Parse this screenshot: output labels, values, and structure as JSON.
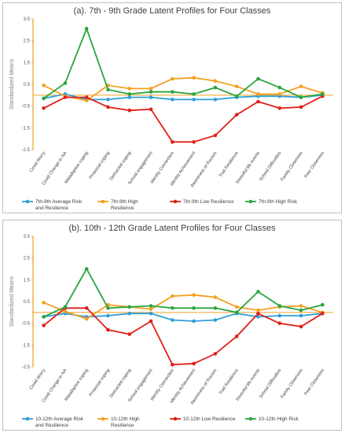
{
  "chart_data": [
    {
      "type": "line",
      "title": "(a). 7th - 9th Grade Latent Profiles for Four Classes",
      "ylabel": "Standardized Means",
      "ylim": [
        -2.5,
        3.5
      ],
      "yticks": [
        "3.5",
        "2.5",
        "1.5",
        "0.5",
        "-0.5",
        "-1.5",
        "-2.5"
      ],
      "grid": false,
      "legend_position": "bottom",
      "categories": [
        "Covid Worry",
        "Covid Change in NA",
        "Maladaptive coping",
        "Prosocial coping",
        "Distracted coping",
        "School engagement",
        "Identity Connection",
        "Identity Achievement",
        "Awareness of Racism",
        "Trait Resilience",
        "Stressful life events",
        "School Difficulties",
        "Family Closeness",
        "Peer Closeness"
      ],
      "series": [
        {
          "name": "7th-9th Average Risk and Resilience",
          "color": "#2e9fd8",
          "values": [
            -0.15,
            0.05,
            -0.2,
            -0.2,
            -0.1,
            -0.1,
            -0.2,
            -0.2,
            -0.2,
            -0.1,
            -0.05,
            -0.05,
            -0.1,
            0.0
          ]
        },
        {
          "name": "7th-9th High Resilience",
          "color": "#f4a021",
          "values": [
            0.45,
            -0.05,
            -0.25,
            0.45,
            0.3,
            0.3,
            0.75,
            0.8,
            0.65,
            0.4,
            0.05,
            0.05,
            0.4,
            0.1
          ]
        },
        {
          "name": "7th-9th Low Resilience",
          "color": "#e0201b",
          "values": [
            -0.6,
            -0.1,
            -0.1,
            -0.55,
            -0.7,
            -0.65,
            -2.15,
            -2.15,
            -1.85,
            -0.9,
            -0.3,
            -0.6,
            -0.55,
            -0.05
          ]
        },
        {
          "name": "7th-9th High Risk",
          "color": "#2aa53e",
          "values": [
            -0.15,
            0.55,
            3.05,
            0.25,
            0.05,
            0.15,
            0.15,
            0.05,
            0.35,
            -0.05,
            0.75,
            0.35,
            -0.1,
            0.05
          ]
        }
      ]
    },
    {
      "type": "line",
      "title": "(b). 10th - 12th Grade Latent Profiles for Four Classes",
      "ylabel": "Standardized Means",
      "ylim": [
        -2.5,
        3.5
      ],
      "yticks": [
        "3.5",
        "2.5",
        "1.5",
        "0.5",
        "-0.5",
        "-1.5",
        "-2.5"
      ],
      "grid": false,
      "legend_position": "bottom",
      "categories": [
        "Covid Worry",
        "Covid Change in NA",
        "Maladaptive coping",
        "Prosocial coping",
        "Distracted coping",
        "School engagement",
        "Identity Connection",
        "Identity Achievement",
        "Awareness of Racism",
        "Trait Resilience",
        "Stressful life events",
        "School Difficulties",
        "Family Closeness",
        "Peer Closeness"
      ],
      "series": [
        {
          "name": "10-12th  Average Risk and Resilience",
          "color": "#2e9fd8",
          "values": [
            -0.2,
            -0.05,
            -0.2,
            -0.15,
            -0.05,
            -0.05,
            -0.35,
            -0.4,
            -0.35,
            -0.05,
            -0.2,
            -0.15,
            -0.15,
            -0.05
          ]
        },
        {
          "name": "10-12th  High Resilience",
          "color": "#f4a021",
          "values": [
            0.45,
            0.05,
            -0.3,
            0.35,
            0.25,
            0.15,
            0.75,
            0.8,
            0.7,
            0.25,
            0.1,
            0.25,
            0.3,
            0.0
          ]
        },
        {
          "name": "10-12th  Low Resilience",
          "color": "#e0201b",
          "values": [
            -0.6,
            0.2,
            0.2,
            -0.8,
            -1.0,
            -0.4,
            -2.4,
            -2.35,
            -1.9,
            -1.1,
            -0.05,
            -0.5,
            -0.65,
            -0.05
          ]
        },
        {
          "name": "10-12th  High Risk",
          "color": "#2aa53e",
          "values": [
            -0.2,
            0.25,
            2.0,
            0.2,
            0.25,
            0.3,
            0.2,
            0.2,
            0.2,
            0.0,
            0.95,
            0.3,
            0.1,
            0.35
          ]
        }
      ]
    }
  ]
}
